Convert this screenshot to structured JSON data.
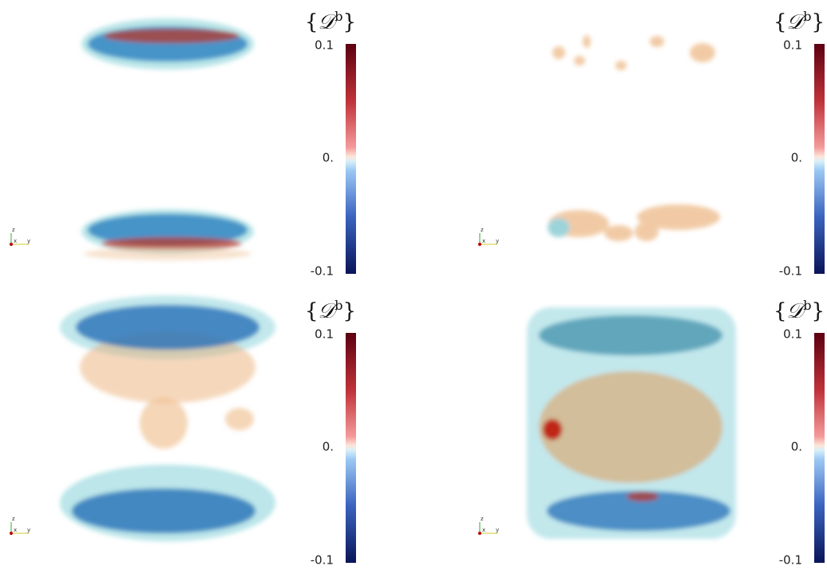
{
  "panels": [
    {
      "colorbar": {
        "open": "{",
        "symbol": "𝒟",
        "superscript": "b",
        "close": "}",
        "ticks": [
          "0.1",
          "0.",
          "-0.1"
        ]
      },
      "axes": [
        "z",
        "x",
        "y"
      ]
    },
    {
      "colorbar": {
        "open": "{",
        "symbol": "𝒟",
        "superscript": "b",
        "close": "}",
        "ticks": [
          "0.1",
          "0.",
          "-0.1"
        ]
      },
      "axes": [
        "z",
        "x",
        "y"
      ]
    },
    {
      "colorbar": {
        "open": "{",
        "symbol": "𝒟",
        "superscript": "b",
        "close": "}",
        "ticks": [
          "0.1",
          "0.",
          "-0.1"
        ]
      },
      "axes": [
        "z",
        "x",
        "y"
      ]
    },
    {
      "colorbar": {
        "open": "{",
        "symbol": "𝒟",
        "superscript": "b",
        "close": "}",
        "ticks": [
          "0.1",
          "0.",
          "-0.1"
        ]
      },
      "axes": [
        "z",
        "x",
        "y"
      ]
    }
  ]
}
